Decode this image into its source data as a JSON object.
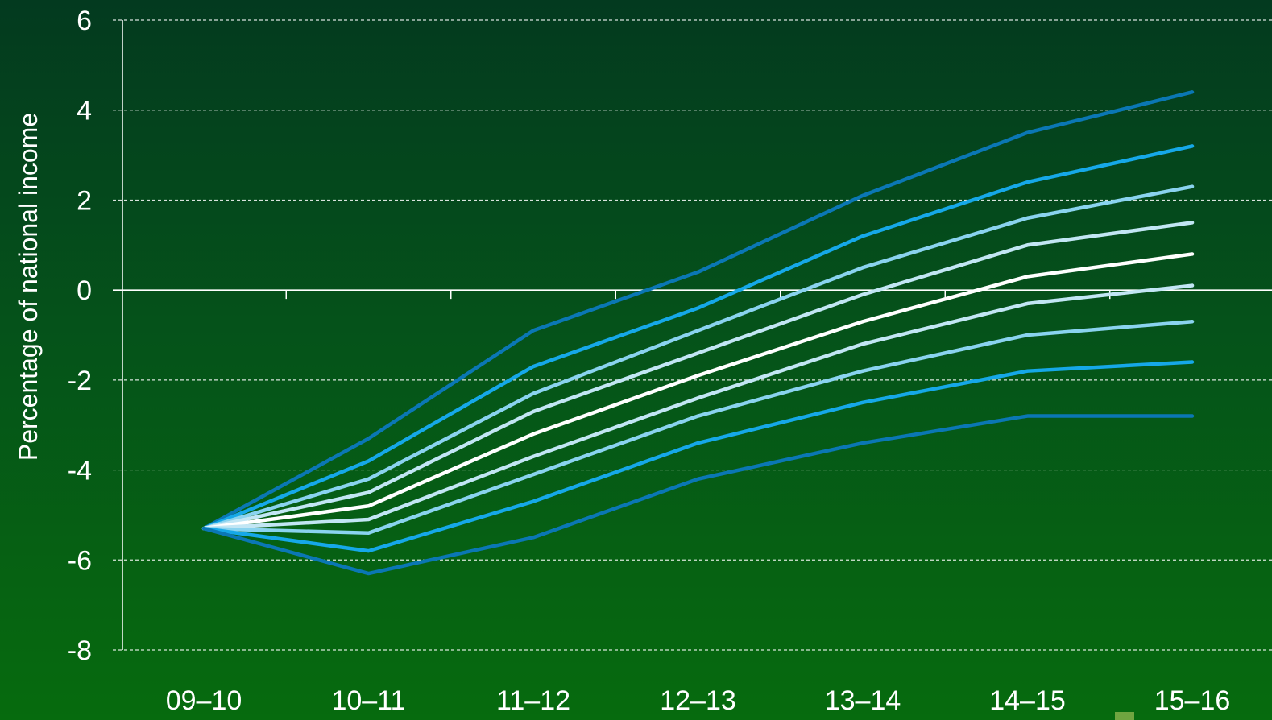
{
  "chart_data": {
    "type": "line",
    "ylabel": "Percentage of national income",
    "xlabel": "",
    "categories": [
      "09–10",
      "10–11",
      "11–12",
      "12–13",
      "13–14",
      "14–15",
      "15–16"
    ],
    "ylim": [
      -8,
      6
    ],
    "yticks": [
      6,
      4,
      2,
      0,
      -2,
      -4,
      -6,
      -8
    ],
    "ytick_labels": [
      "6",
      "4",
      "2",
      "0",
      "-2",
      "-4",
      "-6",
      "-8"
    ],
    "grid": "horizontal dashed",
    "legend": "none",
    "colors": {
      "outer": "#0b77b4",
      "second": "#16a8e8",
      "third": "#8ad3ef",
      "fourth": "#c2e6f4",
      "central": "#ffffff"
    },
    "series": [
      {
        "values": [
          -5.3,
          -3.3,
          -0.9,
          0.4,
          2.1,
          3.5,
          4.4
        ],
        "color": "#0b77b4"
      },
      {
        "values": [
          -5.3,
          -3.8,
          -1.7,
          -0.4,
          1.2,
          2.4,
          3.2
        ],
        "color": "#16a8e8"
      },
      {
        "values": [
          -5.3,
          -4.2,
          -2.3,
          -0.9,
          0.5,
          1.6,
          2.3
        ],
        "color": "#8ad3ef"
      },
      {
        "values": [
          -5.3,
          -4.5,
          -2.7,
          -1.4,
          -0.1,
          1.0,
          1.5
        ],
        "color": "#c2e6f4"
      },
      {
        "values": [
          -5.3,
          -4.8,
          -3.2,
          -1.9,
          -0.7,
          0.3,
          0.8
        ],
        "color": "#ffffff"
      },
      {
        "values": [
          -5.3,
          -5.1,
          -3.7,
          -2.4,
          -1.2,
          -0.3,
          0.1
        ],
        "color": "#c2e6f4"
      },
      {
        "values": [
          -5.3,
          -5.4,
          -4.1,
          -2.8,
          -1.8,
          -1.0,
          -0.7
        ],
        "color": "#8ad3ef"
      },
      {
        "values": [
          -5.3,
          -5.8,
          -4.7,
          -3.4,
          -2.5,
          -1.8,
          -1.6
        ],
        "color": "#16a8e8"
      },
      {
        "values": [
          -5.3,
          -6.3,
          -5.5,
          -4.2,
          -3.4,
          -2.8,
          -2.8
        ],
        "color": "#0b77b4"
      }
    ]
  }
}
